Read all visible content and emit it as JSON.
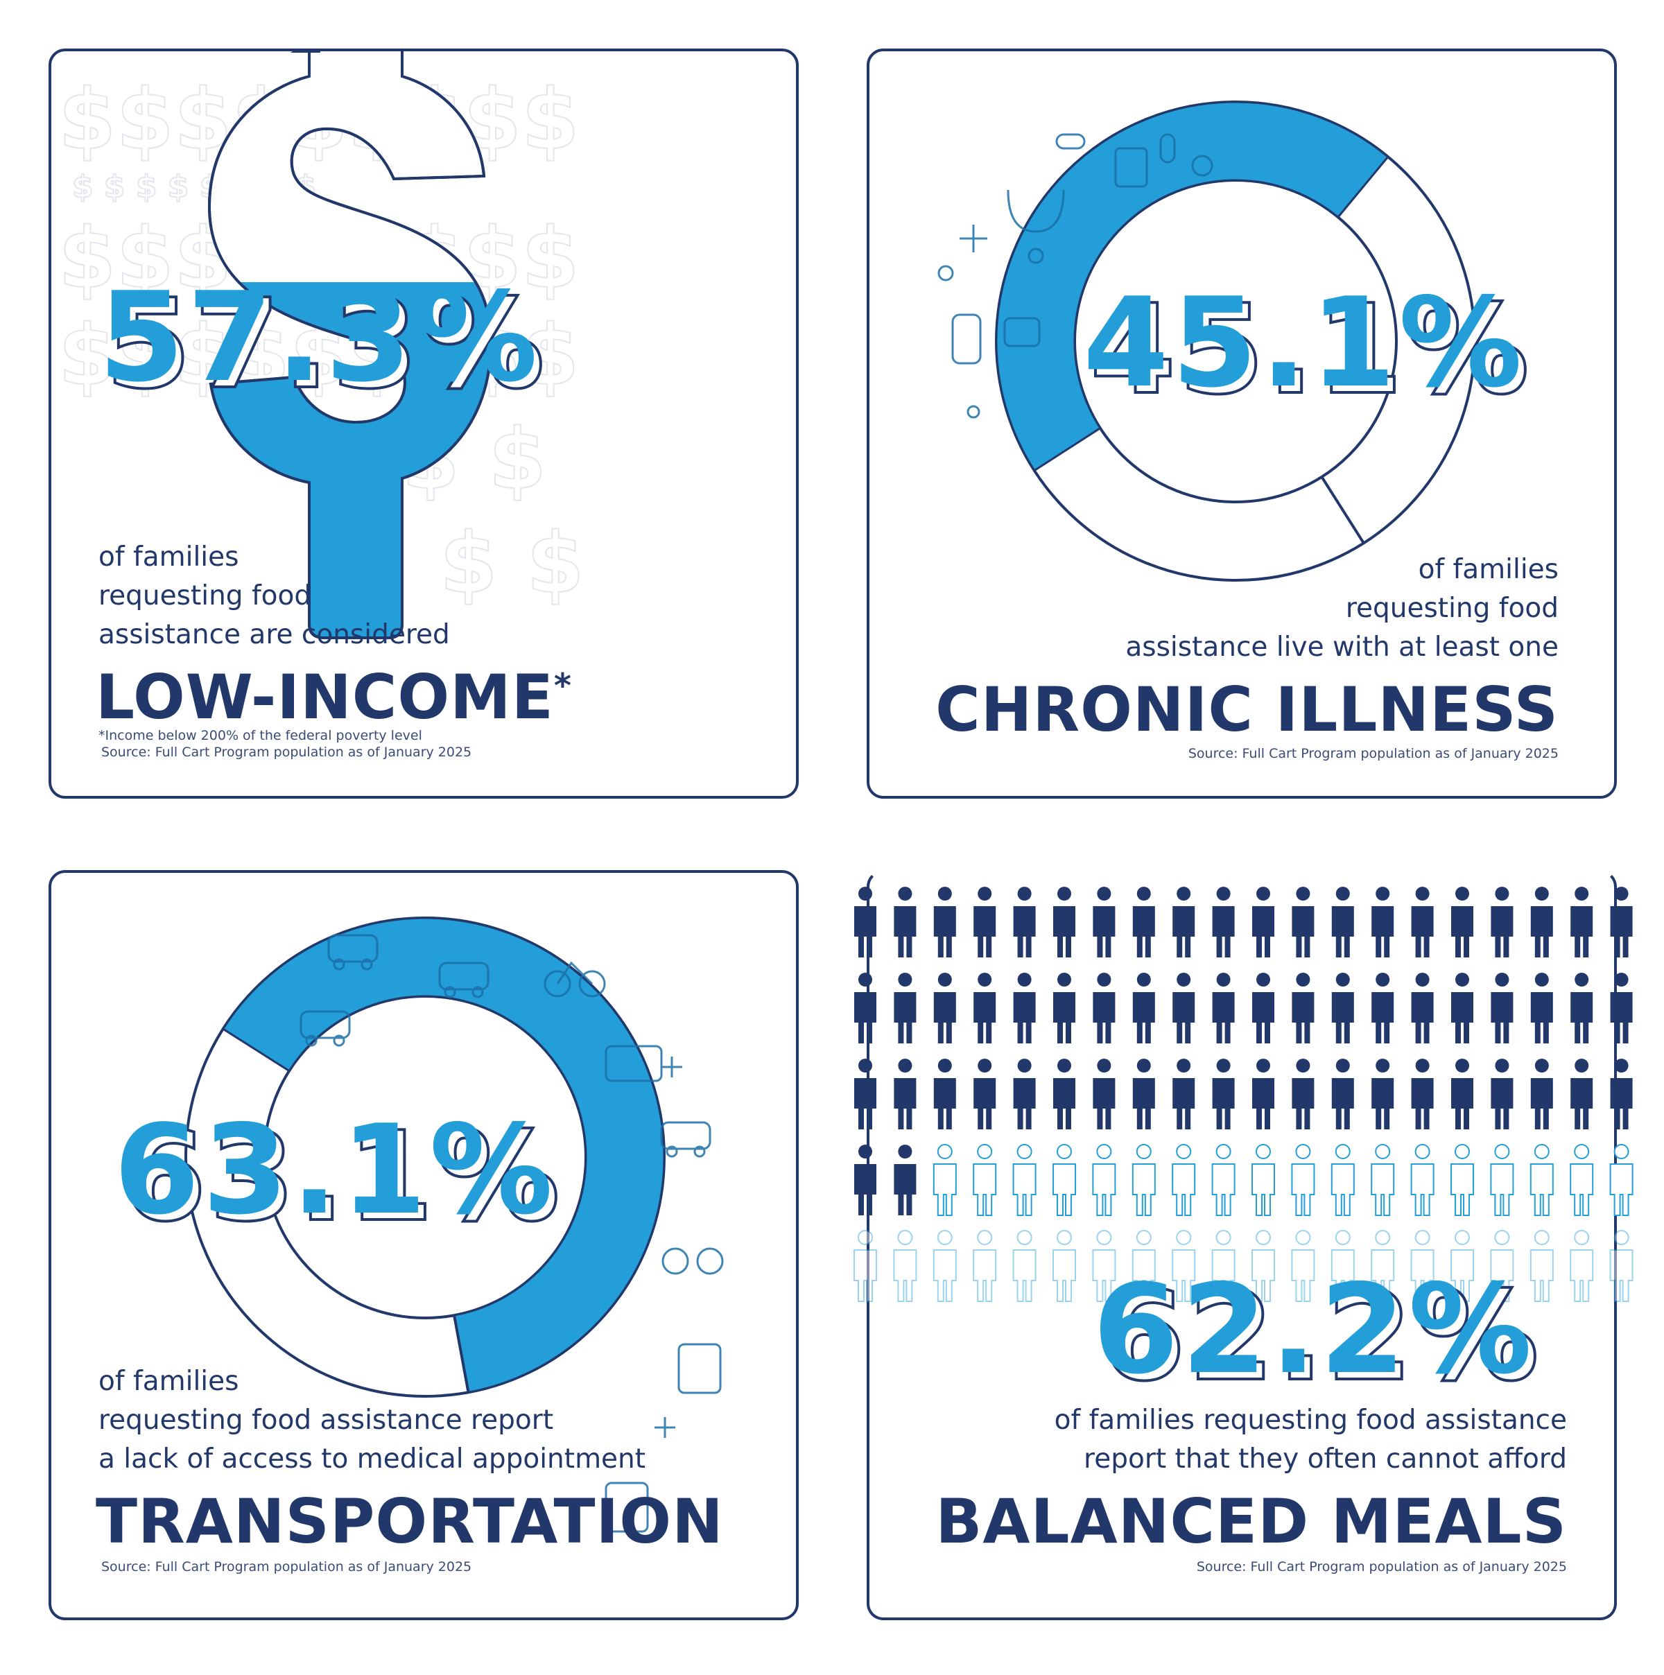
{
  "colors": {
    "navy": "#22386a",
    "blue": "#239ed8",
    "light_blue": "#6cbfe8"
  },
  "cards": [
    {
      "id": "low-income",
      "stat": "57.3%",
      "description_lines": [
        "of families",
        "requesting food",
        "assistance are considered"
      ],
      "headline": "LOW-INCOME",
      "asterisk": "*",
      "footnote": "*Income below 200% of the federal poverty level",
      "source": "Source: Full Cart Program population as of January 2025",
      "icon": "dollar-sign-icon",
      "level": 0.573
    },
    {
      "id": "chronic-illness",
      "stat": "45.1%",
      "description_lines": [
        "of families",
        "requesting food",
        "assistance live with at least one"
      ],
      "headline": "CHRONIC ILLNESS",
      "source": "Source: Full Cart Program population as of January 2025",
      "icon": "medical-ring-icon",
      "level": 0.451
    },
    {
      "id": "transportation",
      "stat": "63.1%",
      "description_lines": [
        "of families",
        "requesting food assistance report",
        "a lack of access to medical appointment"
      ],
      "headline": "TRANSPORTATION",
      "source": "Source: Full Cart Program population as of January 2025",
      "icon": "vehicle-ring-icon",
      "level": 0.631
    },
    {
      "id": "balanced-meals",
      "stat": "62.2%",
      "description_lines": [
        "of families requesting food assistance",
        "report that they often cannot afford"
      ],
      "headline": "BALANCED MEALS",
      "source": "Source: Full Cart Program population as of January 2025",
      "icon": "person-icon",
      "level": 0.622
    }
  ]
}
